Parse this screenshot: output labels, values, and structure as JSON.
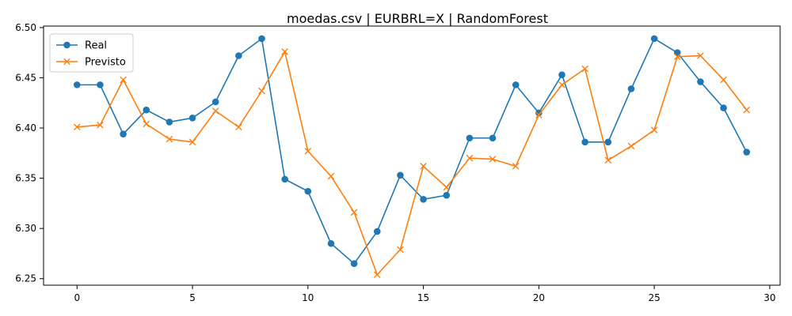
{
  "chart_data": {
    "type": "line",
    "title": "moedas.csv | EURBRL=X | RandomForest",
    "xlabel": "",
    "ylabel": "",
    "xlim": [
      -1.45,
      30.45
    ],
    "ylim": [
      6.2435,
      6.5015
    ],
    "x_ticks": [
      0,
      5,
      10,
      15,
      20,
      25,
      30
    ],
    "y_ticks": [
      6.25,
      6.3,
      6.35,
      6.4,
      6.45,
      6.5
    ],
    "y_tick_labels": [
      "6.25",
      "6.30",
      "6.35",
      "6.40",
      "6.45",
      "6.50"
    ],
    "grid": false,
    "legend_position": "top-left",
    "x": [
      0,
      1,
      2,
      3,
      4,
      5,
      6,
      7,
      8,
      9,
      10,
      11,
      12,
      13,
      14,
      15,
      16,
      17,
      18,
      19,
      20,
      21,
      22,
      23,
      24,
      25,
      26,
      27,
      28,
      29
    ],
    "series": [
      {
        "name": "Real",
        "color": "#1f77b4",
        "marker": "circle",
        "values": [
          6.443,
          6.443,
          6.394,
          6.418,
          6.406,
          6.41,
          6.426,
          6.472,
          6.489,
          6.349,
          6.337,
          6.285,
          6.265,
          6.297,
          6.353,
          6.329,
          6.333,
          6.39,
          6.39,
          6.443,
          6.415,
          6.453,
          6.386,
          6.386,
          6.439,
          6.489,
          6.475,
          6.446,
          6.42,
          6.376
        ]
      },
      {
        "name": "Previsto",
        "color": "#ff7f0e",
        "marker": "x",
        "values": [
          6.401,
          6.403,
          6.448,
          6.404,
          6.389,
          6.386,
          6.417,
          6.401,
          6.437,
          6.476,
          6.377,
          6.352,
          6.316,
          6.254,
          6.279,
          6.362,
          6.341,
          6.37,
          6.369,
          6.362,
          6.413,
          6.443,
          6.459,
          6.368,
          6.382,
          6.398,
          6.471,
          6.472,
          6.448,
          6.418
        ]
      }
    ]
  }
}
